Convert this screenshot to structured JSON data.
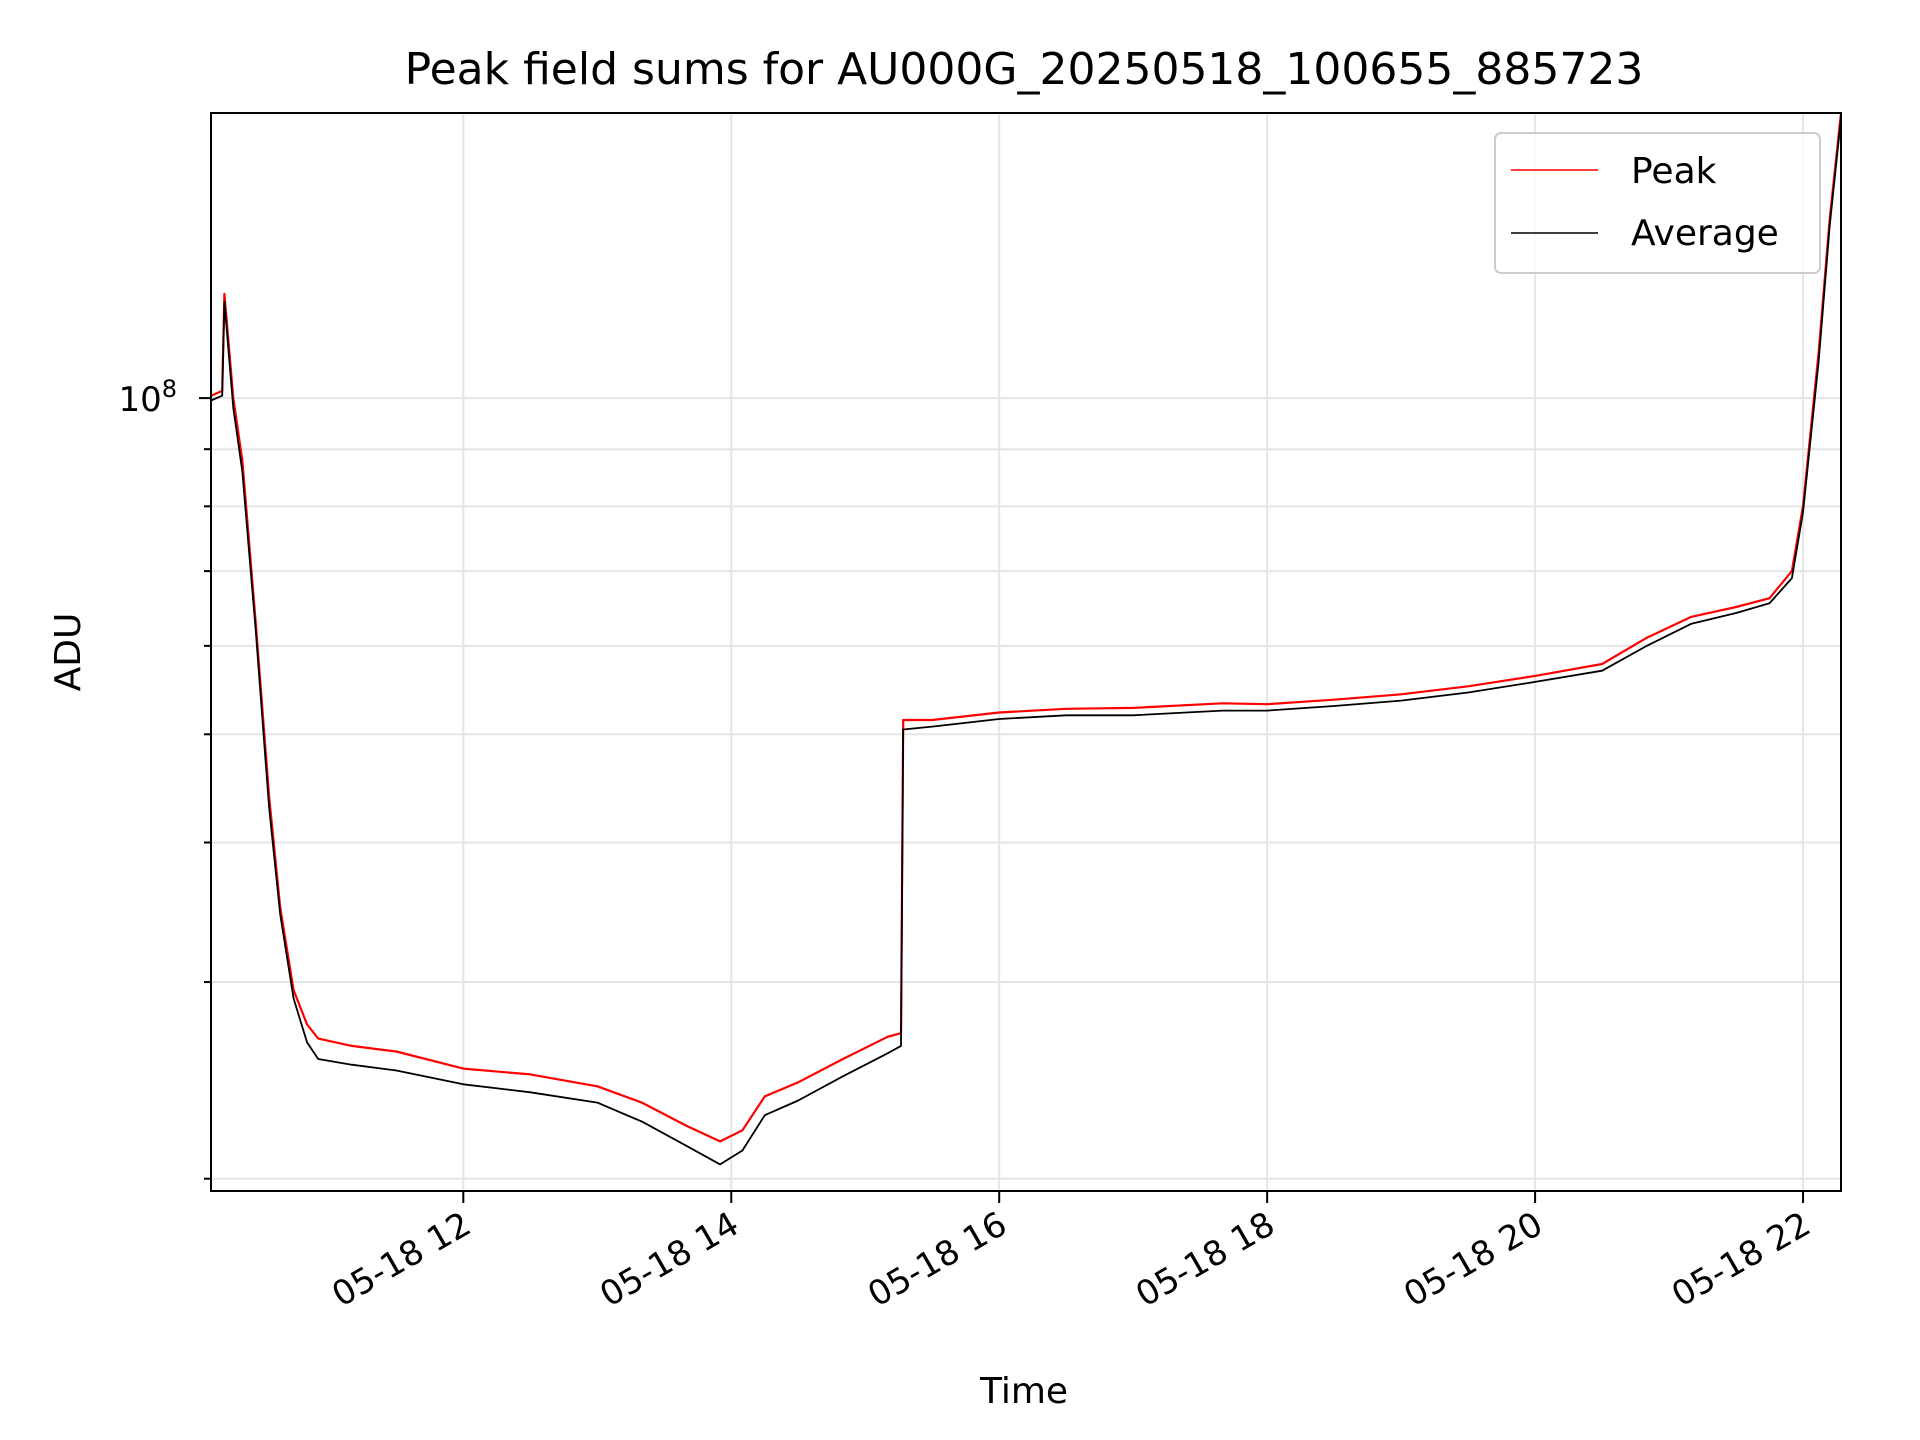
{
  "chart_data": {
    "type": "line",
    "title": "Peak field sums for AU000G_20250518_100655_885723",
    "xlabel": "Time",
    "ylabel": "ADU",
    "y_scale": "log",
    "grid": true,
    "legend_position": "top-right",
    "x_tick_labels": [
      "05-18 12",
      "05-18 14",
      "05-18 16",
      "05-18 18",
      "05-18 20",
      "05-18 22"
    ],
    "x_ticks": [
      "2025-05-18T12:00",
      "2025-05-18T14:00",
      "2025-05-18T16:00",
      "2025-05-18T18:00",
      "2025-05-18T20:00",
      "2025-05-18T22:00"
    ],
    "y_tick_labels": [
      {
        "base": "10",
        "exp": "8",
        "value": 100000000
      }
    ],
    "xlim": [
      "2025-05-18T10:07",
      "2025-05-18T22:17"
    ],
    "ylim": [
      19500000,
      180000000
    ],
    "series": [
      {
        "name": "Peak",
        "color": "#ff0000",
        "points": [
          [
            "2025-05-18T10:07",
            100500000
          ],
          [
            "2025-05-18T10:12",
            101500000
          ],
          [
            "2025-05-18T10:13",
            124000000
          ],
          [
            "2025-05-18T10:17",
            100000000
          ],
          [
            "2025-05-18T10:21",
            88000000
          ],
          [
            "2025-05-18T10:27",
            63000000
          ],
          [
            "2025-05-18T10:33",
            44000000
          ],
          [
            "2025-05-18T10:38",
            35000000
          ],
          [
            "2025-05-18T10:44",
            29500000
          ],
          [
            "2025-05-18T10:50",
            27500000
          ],
          [
            "2025-05-18T10:55",
            26700000
          ],
          [
            "2025-05-18T11:10",
            26300000
          ],
          [
            "2025-05-18T11:30",
            26000000
          ],
          [
            "2025-05-18T12:00",
            25100000
          ],
          [
            "2025-05-18T12:30",
            24800000
          ],
          [
            "2025-05-18T13:00",
            24200000
          ],
          [
            "2025-05-18T13:20",
            23400000
          ],
          [
            "2025-05-18T13:40",
            22300000
          ],
          [
            "2025-05-18T13:55",
            21600000
          ],
          [
            "2025-05-18T14:05",
            22100000
          ],
          [
            "2025-05-18T14:15",
            23700000
          ],
          [
            "2025-05-18T14:30",
            24400000
          ],
          [
            "2025-05-18T14:50",
            25600000
          ],
          [
            "2025-05-18T15:10",
            26800000
          ],
          [
            "2025-05-18T15:16",
            27000000
          ],
          [
            "2025-05-18T15:17",
            51500000
          ],
          [
            "2025-05-18T15:30",
            51500000
          ],
          [
            "2025-05-18T16:00",
            52300000
          ],
          [
            "2025-05-18T16:30",
            52700000
          ],
          [
            "2025-05-18T17:00",
            52800000
          ],
          [
            "2025-05-18T17:40",
            53300000
          ],
          [
            "2025-05-18T18:00",
            53200000
          ],
          [
            "2025-05-18T18:30",
            53700000
          ],
          [
            "2025-05-18T19:00",
            54300000
          ],
          [
            "2025-05-18T19:30",
            55200000
          ],
          [
            "2025-05-18T20:00",
            56400000
          ],
          [
            "2025-05-18T20:30",
            57800000
          ],
          [
            "2025-05-18T20:50",
            61000000
          ],
          [
            "2025-05-18T21:10",
            63700000
          ],
          [
            "2025-05-18T21:30",
            65000000
          ],
          [
            "2025-05-18T21:45",
            66200000
          ],
          [
            "2025-05-18T21:55",
            70000000
          ],
          [
            "2025-05-18T22:00",
            80000000
          ],
          [
            "2025-05-18T22:07",
            110000000
          ],
          [
            "2025-05-18T22:12",
            145000000
          ],
          [
            "2025-05-18T22:17",
            180000000
          ]
        ]
      },
      {
        "name": "Average",
        "color": "#000000",
        "points": [
          [
            "2025-05-18T10:07",
            99500000
          ],
          [
            "2025-05-18T10:12",
            100500000
          ],
          [
            "2025-05-18T10:13",
            122000000
          ],
          [
            "2025-05-18T10:17",
            98000000
          ],
          [
            "2025-05-18T10:21",
            86000000
          ],
          [
            "2025-05-18T10:27",
            62000000
          ],
          [
            "2025-05-18T10:33",
            43000000
          ],
          [
            "2025-05-18T10:38",
            34500000
          ],
          [
            "2025-05-18T10:44",
            29000000
          ],
          [
            "2025-05-18T10:50",
            26500000
          ],
          [
            "2025-05-18T10:55",
            25600000
          ],
          [
            "2025-05-18T11:10",
            25300000
          ],
          [
            "2025-05-18T11:30",
            25000000
          ],
          [
            "2025-05-18T12:00",
            24300000
          ],
          [
            "2025-05-18T12:30",
            23900000
          ],
          [
            "2025-05-18T13:00",
            23400000
          ],
          [
            "2025-05-18T13:20",
            22500000
          ],
          [
            "2025-05-18T13:40",
            21400000
          ],
          [
            "2025-05-18T13:55",
            20600000
          ],
          [
            "2025-05-18T14:05",
            21200000
          ],
          [
            "2025-05-18T14:15",
            22800000
          ],
          [
            "2025-05-18T14:30",
            23500000
          ],
          [
            "2025-05-18T14:50",
            24700000
          ],
          [
            "2025-05-18T15:10",
            25900000
          ],
          [
            "2025-05-18T15:16",
            26300000
          ],
          [
            "2025-05-18T15:17",
            50500000
          ],
          [
            "2025-05-18T15:30",
            50800000
          ],
          [
            "2025-05-18T16:00",
            51600000
          ],
          [
            "2025-05-18T16:30",
            52000000
          ],
          [
            "2025-05-18T17:00",
            52000000
          ],
          [
            "2025-05-18T17:40",
            52500000
          ],
          [
            "2025-05-18T18:00",
            52500000
          ],
          [
            "2025-05-18T18:30",
            53000000
          ],
          [
            "2025-05-18T19:00",
            53600000
          ],
          [
            "2025-05-18T19:30",
            54500000
          ],
          [
            "2025-05-18T20:00",
            55700000
          ],
          [
            "2025-05-18T20:30",
            57000000
          ],
          [
            "2025-05-18T20:50",
            60000000
          ],
          [
            "2025-05-18T21:10",
            62800000
          ],
          [
            "2025-05-18T21:30",
            64200000
          ],
          [
            "2025-05-18T21:45",
            65500000
          ],
          [
            "2025-05-18T21:55",
            69000000
          ],
          [
            "2025-05-18T22:00",
            79000000
          ],
          [
            "2025-05-18T22:07",
            108000000
          ],
          [
            "2025-05-18T22:12",
            143000000
          ],
          [
            "2025-05-18T22:17",
            178000000
          ]
        ]
      }
    ]
  }
}
